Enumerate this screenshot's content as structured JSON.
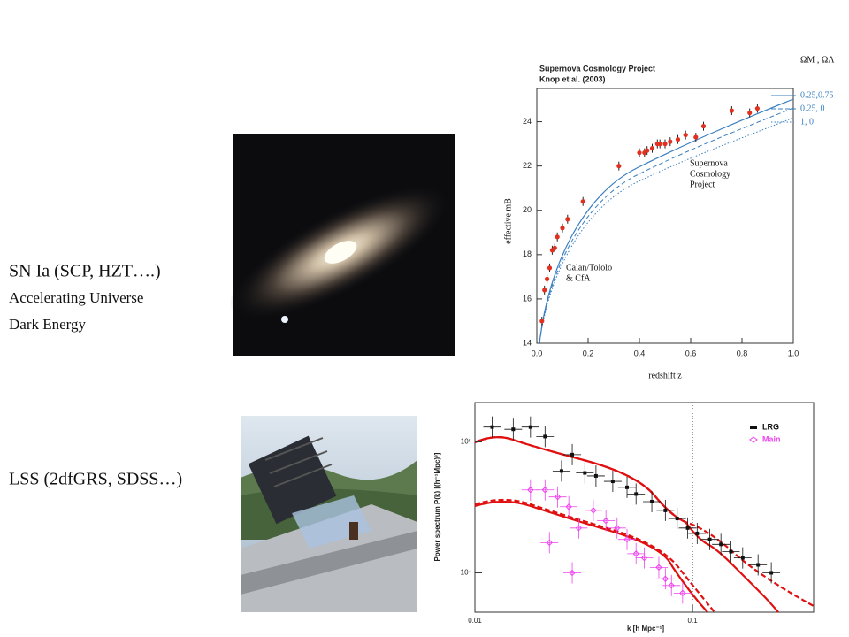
{
  "items": [
    {
      "title": "SN Ia (SCP, HZT….)",
      "lines": [
        "Accelerating Universe",
        "Dark Energy"
      ]
    },
    {
      "title": "LSS (2dfGRS, SDSS…)"
    }
  ],
  "sn_plot": {
    "type": "scatter",
    "title": "Supernova Cosmology Project",
    "subtitle": "Knop et al. (2003)",
    "x_label": "redshift z",
    "y_label": "effective mB",
    "xlim": [
      0,
      1
    ],
    "ylim": [
      14,
      25.5
    ],
    "xticks": [
      {
        "value": 0,
        "label": "0.0"
      },
      0.2,
      0.4,
      0.6,
      0.8,
      {
        "value": 1,
        "label": "1.0"
      }
    ],
    "yticks": [
      14,
      16,
      18,
      20,
      22,
      24
    ],
    "legend_header": "ΩM , ΩΛ",
    "legend": [
      "0.25,0.75",
      "0.25, 0",
      "1,    0"
    ],
    "legend_color": "#3a7fc0",
    "annotations": [
      [
        "Supernova",
        "Cosmology",
        "Project"
      ],
      [
        "Calan/Tololo",
        "& CfA"
      ]
    ],
    "color": "#e03020",
    "x": [
      0.02,
      0.03,
      0.04,
      0.05,
      0.06,
      0.07,
      0.08,
      0.1,
      0.12,
      0.18,
      0.32,
      0.4,
      0.42,
      0.43,
      0.45,
      0.47,
      0.48,
      0.5,
      0.52,
      0.55,
      0.58,
      0.62,
      0.65,
      0.76,
      0.83,
      0.86
    ],
    "values": [
      15,
      16.4,
      16.9,
      17.4,
      18.2,
      18.3,
      18.8,
      19.2,
      19.6,
      20.4,
      22,
      22.6,
      22.6,
      22.7,
      22.8,
      23,
      23,
      23,
      23.1,
      23.2,
      23.4,
      23.3,
      23.8,
      24.5,
      24.4,
      24.6
    ]
  },
  "ps_plot": {
    "type": "scatter",
    "x_label": "k [h Mpc⁻¹]",
    "y_label": "Power spectrum P(k) [(h⁻¹Mpc)³]",
    "log_x": true,
    "log_y": true,
    "xlim": [
      0.01,
      0.36
    ],
    "ylim": [
      5000,
      200000
    ],
    "xticks": [
      0.01,
      0.1
    ],
    "yticks": [
      {
        "value": 10000,
        "label": "10⁴"
      },
      {
        "value": 100000,
        "label": "10⁵"
      }
    ],
    "series": [
      {
        "name": "LRG",
        "color": "#111111",
        "x": [
          0.012,
          0.015,
          0.018,
          0.021,
          0.025,
          0.028,
          0.032,
          0.036,
          0.043,
          0.05,
          0.055,
          0.065,
          0.075,
          0.085,
          0.095,
          0.105,
          0.12,
          0.135,
          0.15,
          0.17,
          0.2,
          0.23
        ],
        "values": [
          130000,
          125000,
          130000,
          110000,
          60000,
          80000,
          58000,
          55000,
          50000,
          45000,
          40000,
          35000,
          30000,
          26000,
          22000,
          20000,
          18000,
          16500,
          14500,
          13000,
          11500,
          10000
        ]
      },
      {
        "name": "Main",
        "color": "#ee44ee",
        "x": [
          0.018,
          0.021,
          0.024,
          0.03,
          0.027,
          0.022,
          0.035,
          0.04,
          0.045,
          0.028,
          0.05,
          0.055,
          0.06,
          0.07,
          0.075,
          0.08,
          0.09
        ],
        "values": [
          43000,
          43000,
          38000,
          22000,
          32000,
          17000,
          30000,
          25000,
          22000,
          10000,
          18000,
          14000,
          13000,
          11000,
          9000,
          8000,
          7000
        ]
      }
    ]
  }
}
